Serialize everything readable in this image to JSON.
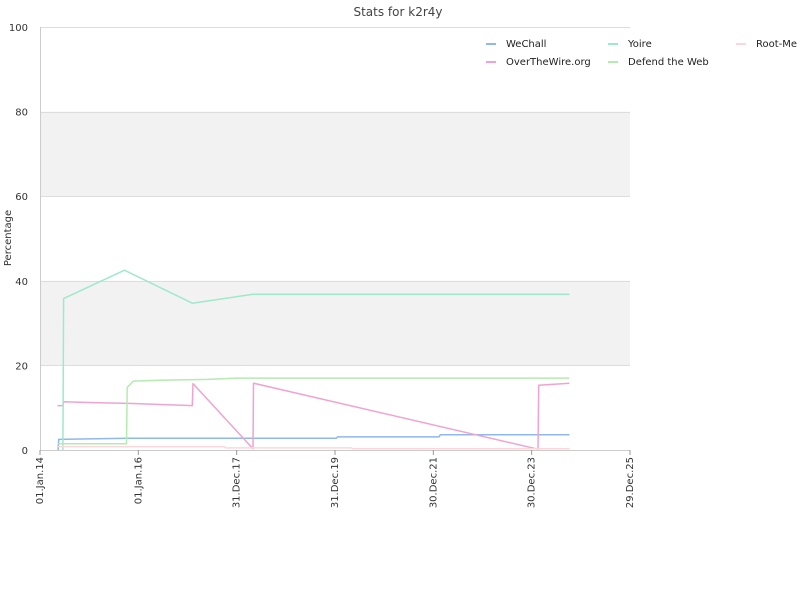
{
  "chart_data": {
    "type": "line",
    "title": "Stats for k2r4y",
    "xlabel": "",
    "ylabel": "Percentage",
    "ylim": [
      0,
      100
    ],
    "xlim": [
      "2014-01-01",
      "2025-12-29"
    ],
    "yticks": [
      "0",
      "20",
      "40",
      "60",
      "80",
      "100"
    ],
    "xticks": [
      {
        "label": "01.Jan.14",
        "date": "2014-01-01"
      },
      {
        "label": "01.Jan.16",
        "date": "2016-01-01"
      },
      {
        "label": "31.Dec.17",
        "date": "2017-12-31"
      },
      {
        "label": "31.Dec.19",
        "date": "2019-12-31"
      },
      {
        "label": "30.Dec.21",
        "date": "2021-12-30"
      },
      {
        "label": "30.Dec.23",
        "date": "2023-12-30"
      },
      {
        "label": "29.Dec.25",
        "date": "2025-12-29"
      }
    ],
    "grid": true,
    "legend_position": "top-right",
    "series": [
      {
        "name": "WeChall",
        "color": "#8fb8ec",
        "points": [
          [
            "2014-05-15",
            0
          ],
          [
            "2014-05-20",
            2.5
          ],
          [
            "2015-11-20",
            2.8
          ],
          [
            "2020-01-10",
            2.8
          ],
          [
            "2020-01-20",
            3.1
          ],
          [
            "2022-02-10",
            3.1
          ],
          [
            "2022-02-20",
            3.6
          ],
          [
            "2024-10-05",
            3.6
          ]
        ]
      },
      {
        "name": "OverTheWire.org",
        "color": "#f1a3cf",
        "points": [
          [
            "2014-05-10",
            10.5
          ],
          [
            "2014-06-20",
            10.5
          ],
          [
            "2014-06-25",
            11.4
          ],
          [
            "2015-02-01",
            11.2
          ],
          [
            "2015-11-20",
            11.0
          ],
          [
            "2017-02-05",
            10.5
          ],
          [
            "2017-02-10",
            15.7
          ],
          [
            "2018-05-01",
            0.3
          ],
          [
            "2018-05-05",
            15.8
          ],
          [
            "2024-02-15",
            0.2
          ],
          [
            "2024-02-20",
            15.3
          ],
          [
            "2024-10-05",
            15.8
          ]
        ]
      },
      {
        "name": "Yoire",
        "color": "#9ee9cc",
        "points": [
          [
            "2014-06-20",
            0
          ],
          [
            "2014-06-25",
            35.8
          ],
          [
            "2015-09-20",
            42.5
          ],
          [
            "2017-02-05",
            34.7
          ],
          [
            "2018-05-01",
            36.8
          ],
          [
            "2024-10-05",
            36.8
          ]
        ]
      },
      {
        "name": "Defend the Web",
        "color": "#b5eab0",
        "points": [
          [
            "2014-05-15",
            1.5
          ],
          [
            "2015-10-05",
            1.5
          ],
          [
            "2015-10-10",
            14.8
          ],
          [
            "2015-11-25",
            16.3
          ],
          [
            "2016-06-01",
            16.5
          ],
          [
            "2017-06-01",
            16.7
          ],
          [
            "2018-01-01",
            17.0
          ],
          [
            "2024-10-05",
            17.0
          ]
        ]
      },
      {
        "name": "Root-Me",
        "color": "#fbd7dd",
        "points": [
          [
            "2014-05-15",
            0.8
          ],
          [
            "2017-10-01",
            0.8
          ],
          [
            "2017-10-10",
            0.5
          ],
          [
            "2020-05-01",
            0.5
          ],
          [
            "2020-05-10",
            0.3
          ],
          [
            "2024-10-05",
            0.3
          ]
        ]
      }
    ]
  }
}
